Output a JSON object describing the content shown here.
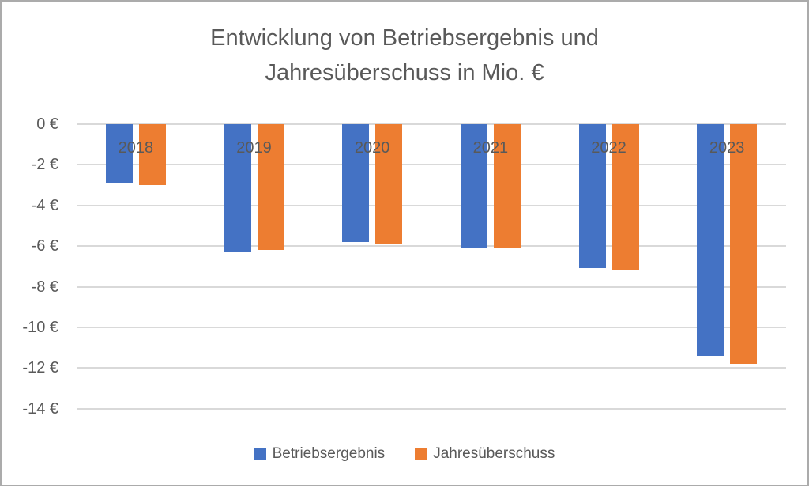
{
  "frame": {
    "border_color": "#ABABAB",
    "background_color": "#FFFFFF"
  },
  "colors": {
    "series_blue": "#4472C4",
    "series_orange": "#ED7D31",
    "text_gray": "#595959",
    "gridline_gray": "#D9D9D9"
  },
  "chart_data": {
    "type": "bar",
    "title": "Entwicklung von Betriebsergebnis und Jahresüberschuss in Mio. €",
    "title_lines": [
      "Entwicklung von Betriebsergebnis und",
      "Jahresüberschuss in Mio. €"
    ],
    "categories": [
      "2018",
      "2019",
      "2020",
      "2021",
      "2022",
      "2023"
    ],
    "series": [
      {
        "name": "Betriebsergebnis",
        "color": "#4472C4",
        "values": [
          -2.9,
          -6.3,
          -5.8,
          -6.1,
          -7.1,
          -11.4
        ]
      },
      {
        "name": "Jahresüberschuss",
        "color": "#ED7D31",
        "values": [
          -3.0,
          -6.2,
          -5.9,
          -6.1,
          -7.2,
          -11.8
        ]
      }
    ],
    "y_axis": {
      "unit": "€",
      "min": -14,
      "max": 0,
      "ticks": [
        0,
        -2,
        -4,
        -6,
        -8,
        -10,
        -12,
        -14
      ],
      "tick_labels": [
        "0 €",
        "-2 €",
        "-4 €",
        "-6 €",
        "-8 €",
        "-10 €",
        "-12 €",
        "-14 €"
      ]
    },
    "grid": true,
    "legend_position": "bottom"
  }
}
